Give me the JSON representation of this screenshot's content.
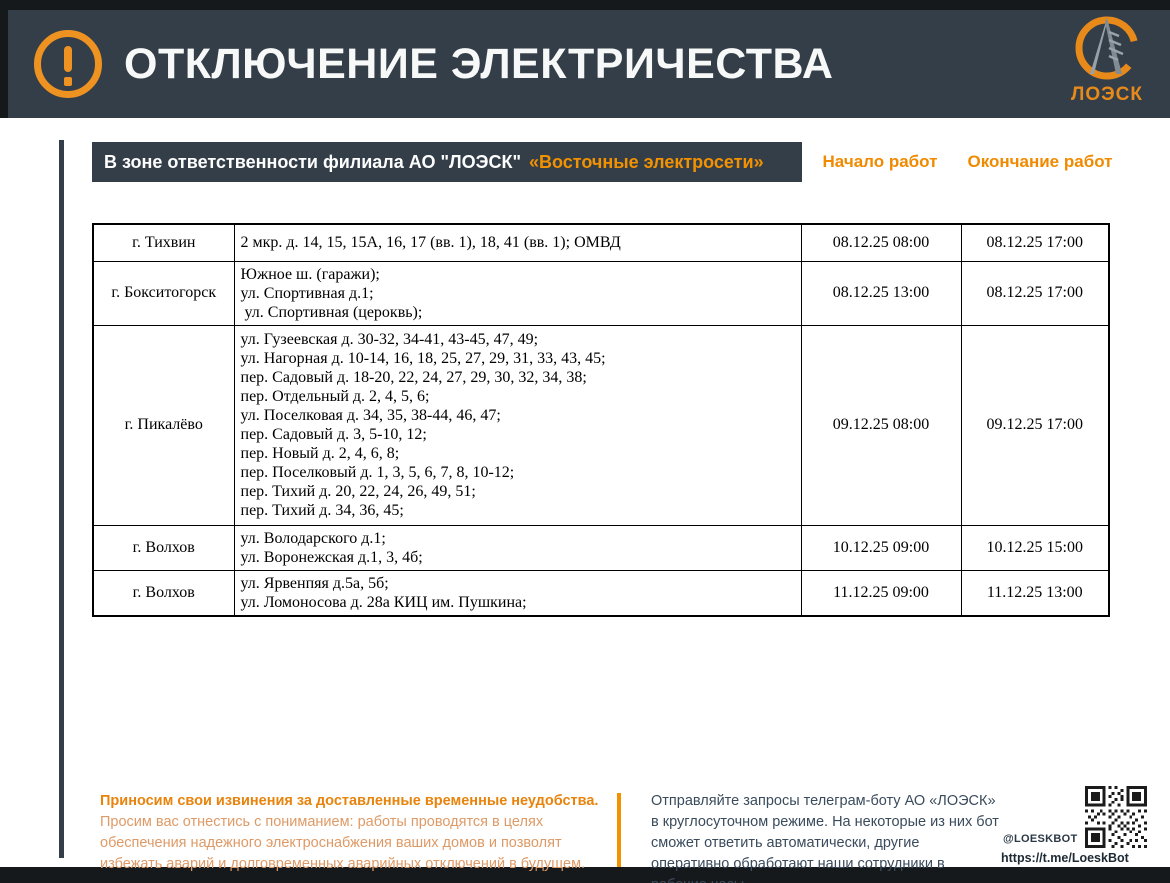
{
  "header": {
    "title": "ОТКЛЮЧЕНИЕ ЭЛЕКТРИЧЕСТВА",
    "logo_text": "ЛОЭСК"
  },
  "subheader": {
    "region_label": "В зоне ответственности филиала АО \"ЛОЭСК\"",
    "branch": "«Восточные электросети»",
    "col_start": "Начало работ",
    "col_end": "Окончание работ"
  },
  "table": {
    "rows": [
      {
        "city": "г. Тихвин",
        "addresses": [
          "2 мкр. д. 14, 15, 15А, 16, 17 (вв. 1), 18, 41 (вв. 1); ОМВД"
        ],
        "start": "08.12.25 08:00",
        "end": "08.12.25 17:00"
      },
      {
        "city": "г. Бокситогорск",
        "addresses": [
          "Южное ш. (гаражи);",
          "ул. Спортивная д.1;",
          " ул. Спортивная (цероквь);"
        ],
        "start": "08.12.25 13:00",
        "end": "08.12.25 17:00"
      },
      {
        "city": "г. Пикалёво",
        "addresses": [
          "ул. Гузеевская д. 30-32, 34-41, 43-45, 47, 49;",
          "ул. Нагорная д. 10-14, 16, 18, 25, 27, 29, 31, 33, 43, 45;",
          "пер. Садовый д. 18-20, 22, 24, 27, 29, 30, 32, 34, 38;",
          "пер. Отдельный д. 2, 4, 5, 6;",
          "ул. Поселковая д. 34, 35, 38-44, 46, 47;",
          "пер. Садовый д. 3, 5-10, 12;",
          "пер. Новый д. 2, 4, 6, 8;",
          "пер. Поселковый д. 1, 3, 5, 6, 7, 8, 10-12;",
          "пер. Тихий д. 20, 22, 24, 26, 49, 51;",
          "пер. Тихий д. 34, 36, 45;"
        ],
        "start": "09.12.25 08:00",
        "end": "09.12.25 17:00"
      },
      {
        "city": "г. Волхов",
        "addresses": [
          "ул. Володарского д.1;",
          "ул. Воронежская д.1, 3, 4б;"
        ],
        "start": "10.12.25 09:00",
        "end": "10.12.25 15:00"
      },
      {
        "city": "г. Волхов",
        "addresses": [
          "ул. Ярвенпяя д.5а, 5б;",
          "ул. Ломоносова д. 28а КИЦ им. Пушкина;"
        ],
        "start": "11.12.25 09:00",
        "end": "11.12.25 13:00"
      }
    ]
  },
  "footer": {
    "apology_lead": "Приносим свои извинения за доставленные временные неудобства.",
    "apology_body": "Просим вас отнестись с пониманием: работы проводятся в целях обеспечения надежного электроснабжения ваших домов и позволят избежать аварий и долговременных аварийных отключений в будущем.",
    "bot_text": "Отправляйте запросы телеграм-боту АО «ЛОЭСК» в круглосуточном режиме. На некоторые из них бот сможет ответить автоматически, другие оперативно обработают наши сотрудники в рабочие часы.",
    "bot_handle": "@LOESKBOT",
    "bot_url": "https://t.me/LoeskBot"
  },
  "colors": {
    "accent_orange": "#F39200",
    "header_bg": "#343E49",
    "frame_black": "#16191C",
    "footer_navy": "#3A4B5C"
  }
}
